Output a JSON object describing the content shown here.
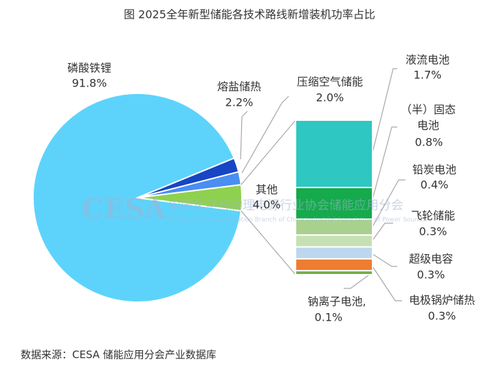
{
  "chart_data": {
    "type": "pie",
    "title": "图 2025全年新型储能各技术路线新增装机功率占比",
    "categories": [
      "磷酸铁锂",
      "熔盐储热",
      "压缩空气储能",
      "其他"
    ],
    "values": [
      91.8,
      2.2,
      2.0,
      4.0
    ],
    "value_labels": [
      "91.8%",
      "2.2%",
      "2.0%",
      "4.0%"
    ],
    "colors": [
      "#5dd3fb",
      "#1746c4",
      "#4a8ef2",
      "#8fd14f"
    ],
    "breakdown": {
      "type": "bar",
      "categories": [
        "液流电池",
        "（半）固态电池",
        "铅炭电池",
        "飞轮储能",
        "超级电容",
        "电极锅炉储热",
        "钠离子电池,"
      ],
      "values": [
        1.7,
        0.8,
        0.4,
        0.3,
        0.3,
        0.3,
        0.1
      ],
      "value_labels": [
        "1.7%",
        "0.8%",
        "0.4%",
        "0.3%",
        "0.3%",
        "0.3%",
        "0.1%"
      ],
      "colors": [
        "#2ec7c1",
        "#15aa4c",
        "#a9d18e",
        "#c6e0b4",
        "#bdd7ee",
        "#ed7d31",
        "#70ad47"
      ]
    },
    "watermark": [
      "CESA",
      "中国化学与物理电源行业协会储能应用分会",
      "Energy Storage Application Branch of China Industrial Association of Power Sources"
    ],
    "source": "数据来源：CESA 储能应用分会产业数据库"
  }
}
